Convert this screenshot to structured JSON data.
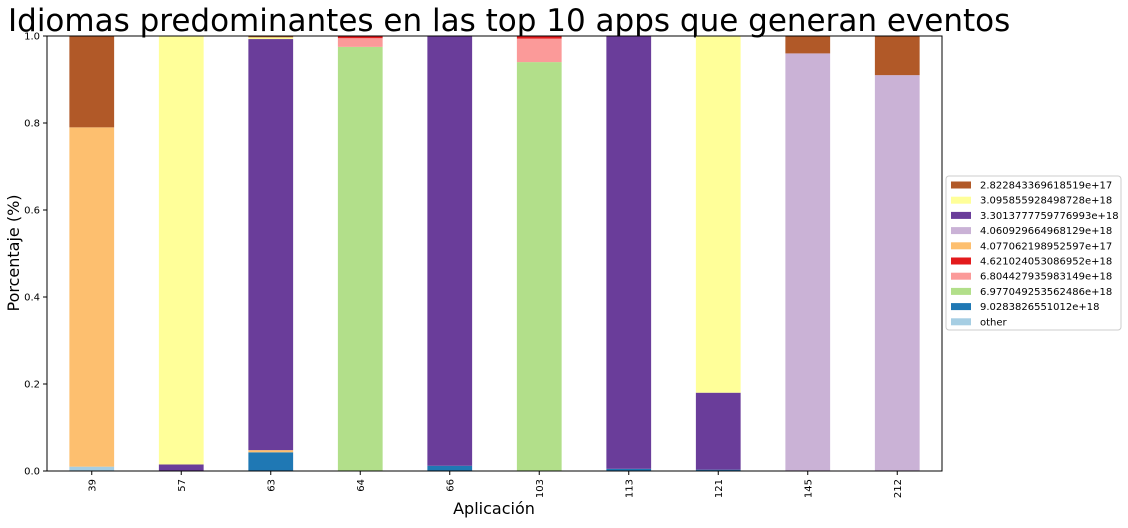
{
  "chart_data": {
    "type": "bar",
    "stacked": true,
    "title": "Idiomas predominantes en las top 10 apps que generan eventos",
    "xlabel": "Aplicación",
    "ylabel": "Porcentaje (%)",
    "ylim": [
      0,
      1
    ],
    "yticks": [
      "0.0",
      "0.2",
      "0.4",
      "0.6",
      "0.8",
      "1.0"
    ],
    "grid": false,
    "legend_position": "right",
    "categories": [
      "39",
      "57",
      "63",
      "64",
      "66",
      "103",
      "113",
      "121",
      "145",
      "212"
    ],
    "series": [
      {
        "name": "other",
        "color": "#a6cee3",
        "values": [
          0.01,
          0,
          0,
          0,
          0,
          0,
          0,
          0,
          0,
          0
        ]
      },
      {
        "name": "9.0283826551012e+18",
        "color": "#1f78b4",
        "values": [
          0,
          0,
          0.043,
          0,
          0.012,
          0,
          0.005,
          0.003,
          0,
          0
        ]
      },
      {
        "name": "6.977049253562486e+18",
        "color": "#b2df8a",
        "values": [
          0,
          0,
          0,
          0.975,
          0,
          0.94,
          0,
          0,
          0,
          0
        ]
      },
      {
        "name": "6.804427935983149e+18",
        "color": "#fb9a99",
        "values": [
          0,
          0,
          0,
          0.02,
          0,
          0.054,
          0,
          0,
          0,
          0
        ]
      },
      {
        "name": "4.621024053086952e+18",
        "color": "#e31a1c",
        "values": [
          0,
          0,
          0,
          0.005,
          0,
          0.006,
          0,
          0,
          0,
          0
        ]
      },
      {
        "name": "4.077062198952597e+17",
        "color": "#fdbf6f",
        "values": [
          0.78,
          0,
          0.005,
          0,
          0,
          0,
          0,
          0,
          0,
          0
        ]
      },
      {
        "name": "4.060929664968129e+18",
        "color": "#cab2d6",
        "values": [
          0,
          0,
          0,
          0,
          0,
          0,
          0,
          0,
          0.96,
          0.91
        ]
      },
      {
        "name": "3.3013777759776993e+18",
        "color": "#6a3d9a",
        "values": [
          0,
          0.015,
          0.945,
          0,
          0.988,
          0,
          0.995,
          0.177,
          0,
          0
        ]
      },
      {
        "name": "3.095855928498728e+18",
        "color": "#ffff99",
        "values": [
          0,
          0.985,
          0.004,
          0,
          0,
          0,
          0,
          0.82,
          0,
          0
        ]
      },
      {
        "name": "2.822843369618519e+17",
        "color": "#b15928",
        "values": [
          0.21,
          0,
          0.003,
          0,
          0,
          0,
          0,
          0,
          0.04,
          0.09
        ]
      }
    ],
    "legend_order": [
      "2.822843369618519e+17",
      "3.095855928498728e+18",
      "3.3013777759776993e+18",
      "4.060929664968129e+18",
      "4.077062198952597e+17",
      "4.621024053086952e+18",
      "6.804427935983149e+18",
      "6.977049253562486e+18",
      "9.0283826551012e+18",
      "other"
    ]
  }
}
